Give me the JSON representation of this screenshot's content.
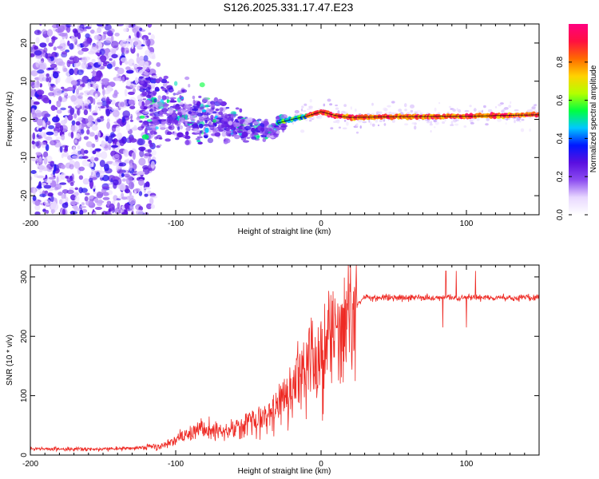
{
  "title": "S126.2025.331.17.47.E23",
  "colors": {
    "snr_line": "#ee2a24",
    "ridge": "#000000"
  },
  "chart_data": [
    {
      "type": "heatmap",
      "xlabel": "Height of straight line (km)",
      "ylabel": "Frequency (Hz)",
      "xlim": [
        -200,
        150
      ],
      "ylim": [
        -25,
        25
      ],
      "xticks": [
        -200,
        -100,
        0,
        100
      ],
      "yticks": [
        -20,
        -10,
        0,
        10,
        20
      ],
      "colorbar": {
        "label": "Normalized spectral amplitude",
        "range": [
          0,
          1
        ],
        "ticks": [
          "0.0",
          "0.2",
          "0.4",
          "0.6",
          "0.8"
        ],
        "colormap": [
          "#ffffff",
          "#e8d8ff",
          "#8c4cf0",
          "#5a0fe0",
          "#0018ff",
          "#00c8ff",
          "#00ff40",
          "#b4ff00",
          "#ffd200",
          "#ff6a00",
          "#ff1040",
          "#ff0080"
        ]
      },
      "ridge": {
        "x": [
          -30,
          -20,
          -10,
          0,
          10,
          20,
          50,
          100,
          150
        ],
        "y": [
          -1,
          0,
          0.8,
          2,
          1,
          0.5,
          0.7,
          0.8,
          1.2
        ]
      }
    },
    {
      "type": "line",
      "xlabel": "Height of straight line (km)",
      "ylabel": "SNR (10 * v/v)",
      "xlim": [
        -200,
        150
      ],
      "ylim": [
        0,
        320
      ],
      "xticks": [
        -200,
        -100,
        0,
        100
      ],
      "yticks": [
        0,
        100,
        200,
        300
      ],
      "series": [
        {
          "name": "SNR",
          "x": [
            -200,
            -150,
            -125,
            -110,
            -100,
            -90,
            -80,
            -70,
            -60,
            -50,
            -40,
            -30,
            -20,
            -10,
            0,
            10,
            20,
            25,
            30,
            40,
            50,
            75,
            100,
            125,
            150
          ],
          "y": [
            10,
            10,
            12,
            15,
            25,
            35,
            45,
            40,
            40,
            55,
            60,
            80,
            110,
            150,
            170,
            200,
            235,
            255,
            265,
            265,
            265,
            265,
            265,
            265,
            265
          ]
        }
      ]
    }
  ]
}
